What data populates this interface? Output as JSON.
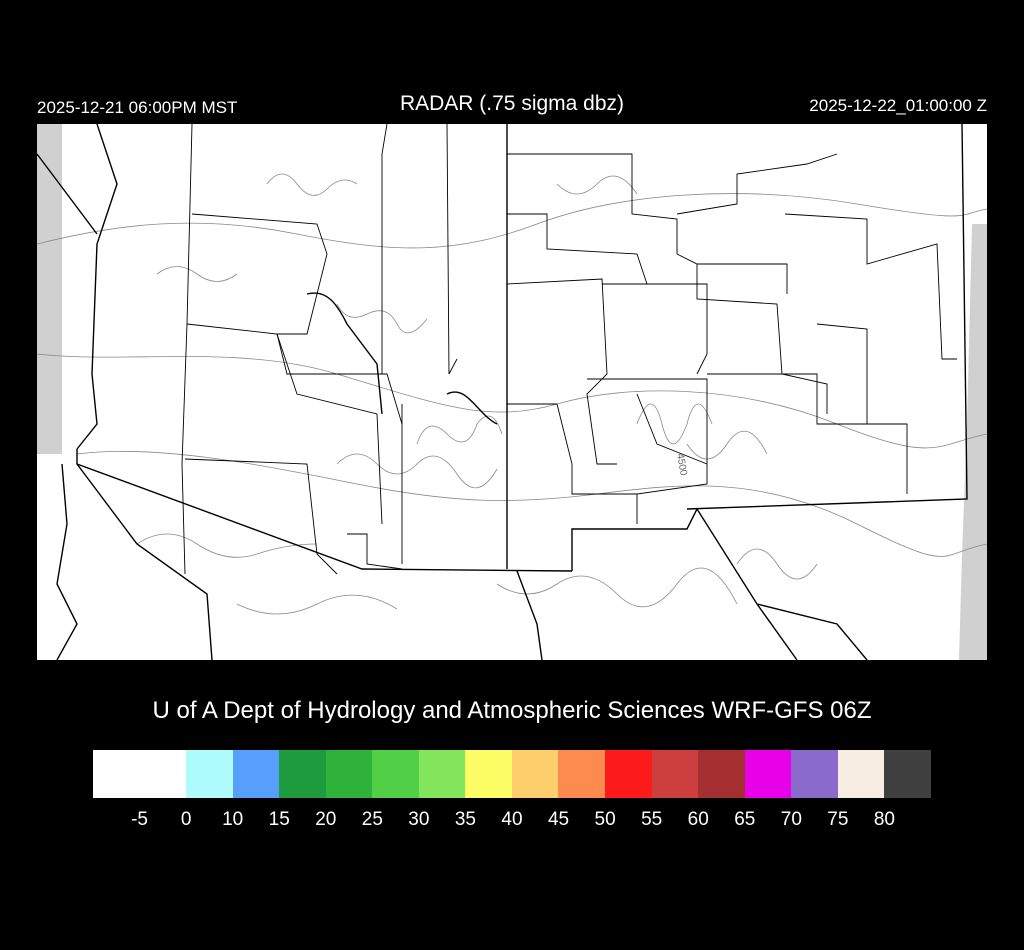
{
  "header": {
    "local_time": "2025-12-21 06:00PM MST",
    "title": "RADAR (.75 sigma dbz)",
    "valid_time": "2025-12-22_01:00:00 Z"
  },
  "map": {
    "contour_label": "4500",
    "background": "#ffffff",
    "border_color": "#000000",
    "contour_color": "#888888",
    "missing_data_color": "#d0d0d0"
  },
  "footer": "U of A Dept of Hydrology and Atmospheric Sciences WRF-GFS 06Z",
  "colorbar": {
    "colors": [
      "#ffffff",
      "#aefcfc",
      "#569ffc",
      "#1f9b3f",
      "#2fb23a",
      "#50cf47",
      "#82e55c",
      "#fdfd66",
      "#fdce6b",
      "#fd8a4f",
      "#fd1a1a",
      "#cc3f3f",
      "#a42f30",
      "#e800e8",
      "#8a6acb",
      "#f8ede3",
      "#404040"
    ],
    "labels": [
      "-5",
      "0",
      "10",
      "15",
      "20",
      "25",
      "30",
      "35",
      "40",
      "45",
      "50",
      "55",
      "60",
      "65",
      "70",
      "75",
      "80"
    ]
  }
}
